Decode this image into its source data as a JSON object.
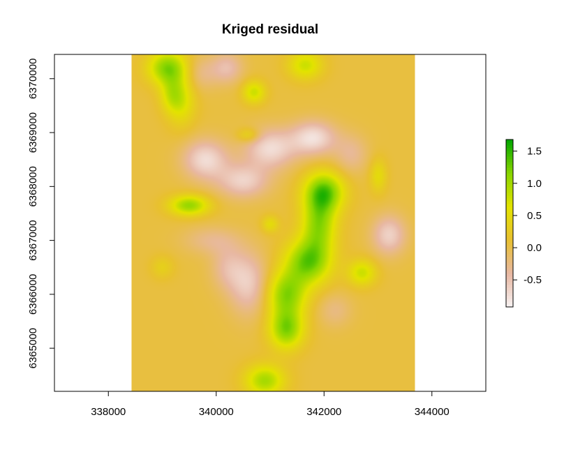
{
  "chart_data": {
    "type": "heatmap",
    "title": "Kriged residual",
    "xlabel": "",
    "ylabel": "",
    "xlim": [
      337000,
      345000
    ],
    "ylim": [
      6364200,
      6370450
    ],
    "raster_extent": {
      "x": [
        338430,
        343680
      ],
      "y": [
        6364200,
        6370450
      ]
    },
    "x_ticks": [
      338000,
      340000,
      342000,
      344000
    ],
    "x_tick_labels": [
      "338000",
      "340000",
      "342000",
      "344000"
    ],
    "y_ticks": [
      6365000,
      6366000,
      6367000,
      6368000,
      6369000,
      6370000
    ],
    "y_tick_labels": [
      "6365000",
      "6366000",
      "6367000",
      "6368000",
      "6369000",
      "6370000"
    ],
    "colorbar": {
      "range": [
        -0.92,
        1.68
      ],
      "ticks": [
        1.5,
        1.0,
        0.5,
        0.0,
        -0.5
      ],
      "tick_labels": [
        "1.5",
        "1.0",
        "0.5",
        "0.0",
        "-0.5"
      ],
      "colors": [
        "#f7f2f2",
        "#e8b8a3",
        "#e8c031",
        "#e3e300",
        "#88d500",
        "#00a600"
      ]
    },
    "background_value": 0.05,
    "features": [
      {
        "x": 339100,
        "y": 6370200,
        "v": 1.35,
        "rx": 350,
        "ry": 300
      },
      {
        "x": 339350,
        "y": 6369600,
        "v": 0.8,
        "rx": 250,
        "ry": 450
      },
      {
        "x": 339150,
        "y": 6369700,
        "v": 0.6,
        "rx": 200,
        "ry": 300
      },
      {
        "x": 341650,
        "y": 6370250,
        "v": 0.9,
        "rx": 300,
        "ry": 250
      },
      {
        "x": 340700,
        "y": 6369750,
        "v": 0.9,
        "rx": 200,
        "ry": 200
      },
      {
        "x": 340600,
        "y": 6368950,
        "v": 0.6,
        "rx": 200,
        "ry": 130
      },
      {
        "x": 339700,
        "y": 6370100,
        "v": -0.35,
        "rx": 300,
        "ry": 300
      },
      {
        "x": 340200,
        "y": 6370200,
        "v": -0.55,
        "rx": 280,
        "ry": 280
      },
      {
        "x": 339800,
        "y": 6368500,
        "v": -0.85,
        "rx": 400,
        "ry": 350
      },
      {
        "x": 341000,
        "y": 6368700,
        "v": -0.85,
        "rx": 450,
        "ry": 350
      },
      {
        "x": 341800,
        "y": 6368900,
        "v": -0.9,
        "rx": 400,
        "ry": 300
      },
      {
        "x": 340500,
        "y": 6368100,
        "v": -0.75,
        "rx": 450,
        "ry": 300
      },
      {
        "x": 342500,
        "y": 6368600,
        "v": -0.4,
        "rx": 300,
        "ry": 350
      },
      {
        "x": 339500,
        "y": 6367650,
        "v": 1.25,
        "rx": 350,
        "ry": 180
      },
      {
        "x": 342000,
        "y": 6367900,
        "v": 1.5,
        "rx": 350,
        "ry": 350
      },
      {
        "x": 341900,
        "y": 6367300,
        "v": 1.25,
        "rx": 300,
        "ry": 500
      },
      {
        "x": 341700,
        "y": 6366600,
        "v": 1.45,
        "rx": 400,
        "ry": 400
      },
      {
        "x": 341300,
        "y": 6366000,
        "v": 1.3,
        "rx": 350,
        "ry": 400
      },
      {
        "x": 341300,
        "y": 6365350,
        "v": 1.35,
        "rx": 300,
        "ry": 350
      },
      {
        "x": 342700,
        "y": 6366400,
        "v": 0.9,
        "rx": 250,
        "ry": 230
      },
      {
        "x": 340900,
        "y": 6364400,
        "v": 1.15,
        "rx": 350,
        "ry": 280
      },
      {
        "x": 343000,
        "y": 6368200,
        "v": 0.6,
        "rx": 150,
        "ry": 300
      },
      {
        "x": 341000,
        "y": 6367300,
        "v": 0.6,
        "rx": 150,
        "ry": 150
      },
      {
        "x": 339000,
        "y": 6366500,
        "v": 0.4,
        "rx": 200,
        "ry": 200
      },
      {
        "x": 343200,
        "y": 6367100,
        "v": -0.75,
        "rx": 300,
        "ry": 350
      },
      {
        "x": 340600,
        "y": 6366200,
        "v": -0.7,
        "rx": 350,
        "ry": 550
      },
      {
        "x": 340200,
        "y": 6366500,
        "v": -0.4,
        "rx": 300,
        "ry": 400
      },
      {
        "x": 342200,
        "y": 6365700,
        "v": -0.3,
        "rx": 300,
        "ry": 300
      },
      {
        "x": 339900,
        "y": 6367000,
        "v": -0.35,
        "rx": 500,
        "ry": 250
      }
    ]
  }
}
